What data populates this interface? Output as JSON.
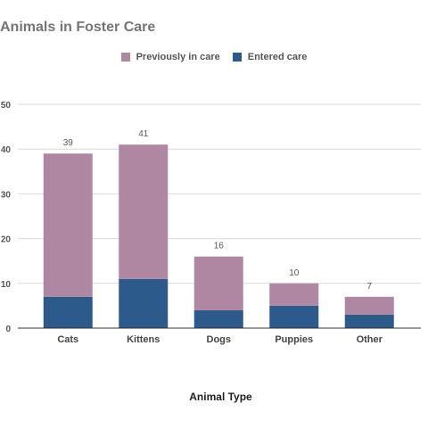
{
  "chart_data": {
    "type": "bar",
    "stacked": true,
    "title": "Animals in Foster Care",
    "xlabel": "Animal Type",
    "ylabel": "",
    "categories": [
      "Cats",
      "Kittens",
      "Dogs",
      "Puppies",
      "Other"
    ],
    "series": [
      {
        "name": "Entered care",
        "values": [
          7,
          11,
          4,
          5,
          3
        ],
        "color": "#2c5a8a"
      },
      {
        "name": "Previously in care",
        "values": [
          32,
          30,
          12,
          5,
          4
        ],
        "color": "#b087a3"
      }
    ],
    "totals": [
      39,
      41,
      16,
      10,
      7
    ],
    "ylim": [
      0,
      50
    ],
    "yticks": [
      0,
      10,
      20,
      30,
      40,
      50
    ],
    "grid": true,
    "legend_position": "top"
  },
  "legend": {
    "items": [
      {
        "label": "Previously in care",
        "color": "#b087a3"
      },
      {
        "label": "Entered care",
        "color": "#2c5a8a"
      }
    ]
  }
}
